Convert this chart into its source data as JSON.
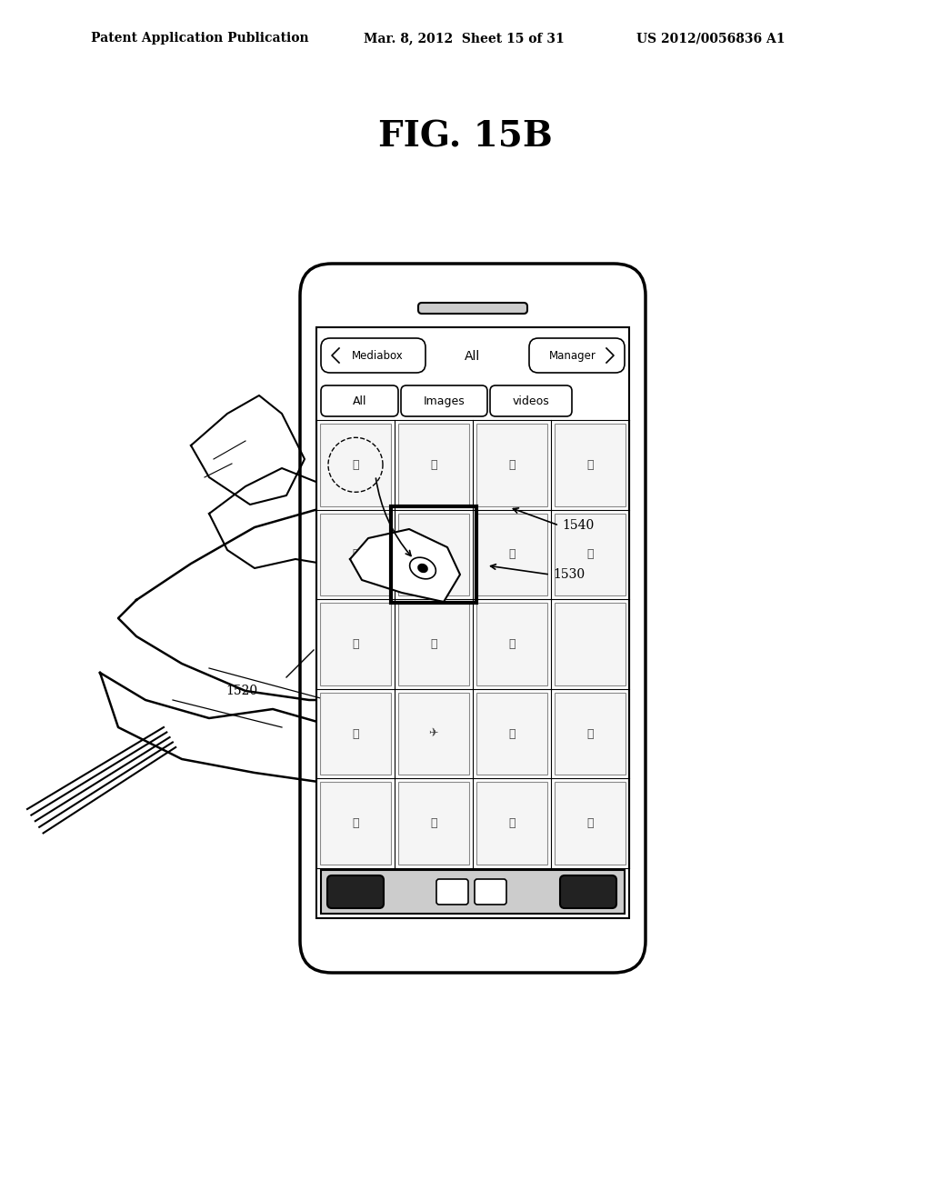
{
  "title": "FIG. 15B",
  "header_left": "Patent Application Publication",
  "header_mid": "Mar. 8, 2012  Sheet 15 of 31",
  "header_right": "US 2012/0056836 A1",
  "bg_color": "#ffffff",
  "label_1520": "1520",
  "label_1530": "1530",
  "label_1540": "1540",
  "nav_labels": [
    "Mediabox",
    "All",
    "Manager"
  ],
  "tab_labels": [
    "All",
    "Images",
    "videos"
  ]
}
